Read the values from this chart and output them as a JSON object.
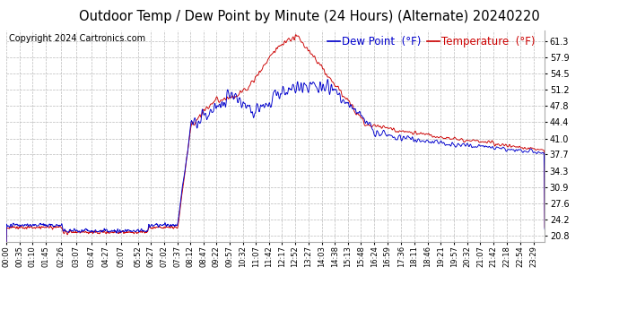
{
  "title": "Outdoor Temp / Dew Point by Minute (24 Hours) (Alternate) 20240220",
  "copyright": "Copyright 2024 Cartronics.com",
  "legend_dew": "Dew Point  (°F)",
  "legend_temp": "Temperature  (°F)",
  "dew_color": "#0000cc",
  "temp_color": "#cc0000",
  "bg_color": "#ffffff",
  "grid_color": "#bbbbbb",
  "yticks": [
    20.8,
    24.2,
    27.6,
    30.9,
    34.3,
    37.7,
    41.0,
    44.4,
    47.8,
    51.2,
    54.5,
    57.9,
    61.3
  ],
  "ymin": 19.5,
  "ymax": 63.5,
  "title_fontsize": 10.5,
  "copyright_fontsize": 7,
  "legend_fontsize": 8.5,
  "tick_fontsize": 7,
  "xlabel_fontsize": 6,
  "xtick_labels": [
    "00:00",
    "00:35",
    "01:10",
    "01:45",
    "02:26",
    "03:07",
    "03:47",
    "04:27",
    "05:07",
    "05:52",
    "06:27",
    "07:02",
    "07:37",
    "08:12",
    "08:47",
    "09:22",
    "09:57",
    "10:32",
    "11:07",
    "11:42",
    "12:17",
    "12:52",
    "13:27",
    "14:03",
    "14:38",
    "15:13",
    "15:48",
    "16:24",
    "16:59",
    "17:36",
    "18:11",
    "18:46",
    "19:21",
    "19:57",
    "20:32",
    "21:07",
    "21:42",
    "22:18",
    "22:54",
    "23:29"
  ],
  "xtick_minutes": [
    0,
    35,
    70,
    105,
    146,
    187,
    227,
    267,
    307,
    352,
    387,
    422,
    457,
    492,
    527,
    562,
    597,
    632,
    667,
    702,
    737,
    772,
    807,
    843,
    878,
    913,
    948,
    984,
    1019,
    1056,
    1091,
    1126,
    1161,
    1197,
    1232,
    1267,
    1302,
    1338,
    1374,
    1409
  ]
}
